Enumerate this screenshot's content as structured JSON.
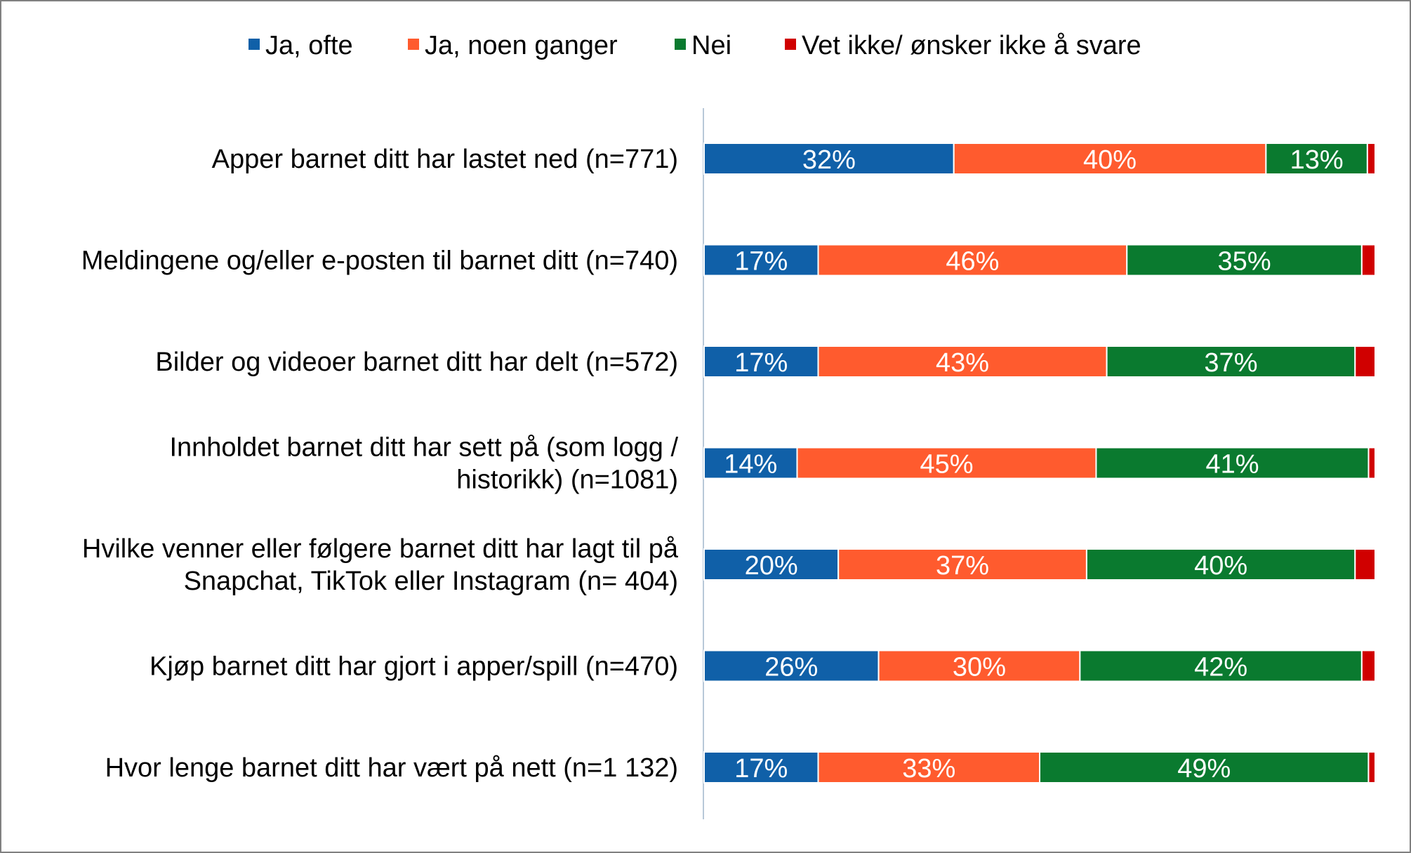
{
  "chart_data": {
    "type": "bar",
    "orientation": "horizontal",
    "stacked": true,
    "title": "",
    "xlabel": "",
    "ylabel": "",
    "xlim": [
      0,
      100
    ],
    "legend_position": "top",
    "grid": false,
    "categories": [
      [
        "Apper barnet ditt har lastet ned (n=771)"
      ],
      [
        "Meldingene og/eller e-posten til barnet ditt (n=740)"
      ],
      [
        "Bilder og videoer barnet ditt har delt (n=572)"
      ],
      [
        "Innholdet barnet ditt har sett på (som logg /",
        "historikk) (n=1081)"
      ],
      [
        "Hvilke venner eller følgere barnet ditt har lagt til på",
        "Snapchat, TikTok eller Instagram (n= 404)"
      ],
      [
        "Kjøp barnet ditt har gjort i apper/spill (n=470)"
      ],
      [
        "Hvor lenge barnet ditt har vært på nett (n=1 132)"
      ]
    ],
    "series": [
      {
        "name": "Ja, ofte",
        "color": "#1060A8",
        "values": [
          32,
          17,
          17,
          14,
          20,
          26,
          17
        ],
        "labels": [
          "32%",
          "17%",
          "17%",
          "14%",
          "20%",
          "26%",
          "17%"
        ]
      },
      {
        "name": "Ja, noen ganger",
        "color": "#FF5B2E",
        "values": [
          40,
          46,
          43,
          45,
          37,
          30,
          33
        ],
        "labels": [
          "40%",
          "46%",
          "43%",
          "45%",
          "37%",
          "30%",
          "33%"
        ]
      },
      {
        "name": "Nei",
        "color": "#0A7A2F",
        "values": [
          13,
          35,
          37,
          41,
          40,
          42,
          49
        ],
        "labels": [
          "13%",
          "35%",
          "37%",
          "41%",
          "40%",
          "42%",
          "49%"
        ]
      },
      {
        "name": "Vet ikke/ ønsker ikke å svare",
        "color": "#D00000",
        "values": [
          1,
          2,
          3,
          1,
          3,
          2,
          1
        ],
        "labels": [
          "",
          "",
          "",
          "",
          "",
          "",
          ""
        ]
      }
    ]
  }
}
